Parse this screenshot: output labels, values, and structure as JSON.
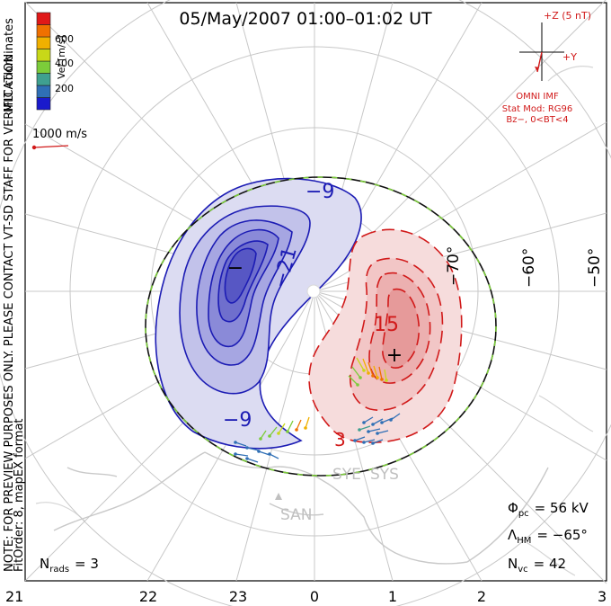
{
  "title": "05/May/2007 01:00–01:02 UT",
  "coords_label": "MLT coordinates",
  "preview_note": "NOTE: FOR PREVIEW PURPOSES ONLY. PLEASE CONTACT VT-SD STAFF FOR VERIFICATION.",
  "fit_note": "FitOrder: 8, mapEX format",
  "scale_bar": {
    "title": "Vel [m/s]",
    "ticks": [
      "200",
      "400",
      "600"
    ],
    "colors": [
      "#1a1acc",
      "#2f6fb5",
      "#3fa090",
      "#7ccc3a",
      "#c8d818",
      "#f0b000",
      "#ef7000",
      "#e01818"
    ]
  },
  "vector_ref": "1000 m/s",
  "imf": {
    "scale": "+Z (5 nT)",
    "y_label": "+Y",
    "title": "OMNI IMF",
    "model": "Stat Mod: RG96",
    "condition": "Bz−, 0<BT<4"
  },
  "stats": {
    "phi_label": "Φ",
    "phi_sub": "pc",
    "phi_value": "= 56 kV",
    "lambda_label": "Λ",
    "lambda_sub": "HM",
    "lambda_value": "= −65°",
    "nvc_label": "N",
    "nvc_sub": "vc",
    "nvc_value": "= 42",
    "nrads_label": "N",
    "nrads_sub": "rads",
    "nrads_value": "= 3"
  },
  "stations": [
    "SAN",
    "SYE",
    "SYS"
  ],
  "chart_data": {
    "type": "polar-contour",
    "mlt_ticks": [
      "21",
      "22",
      "23",
      "0",
      "1",
      "2",
      "3"
    ],
    "mlat_ticks": [
      "−70°",
      "−60°",
      "−50°"
    ],
    "contours": [
      {
        "cell": "dusk",
        "sign": "negative",
        "labels": [
          "−9",
          "−21",
          "−9"
        ],
        "extremum": "−"
      },
      {
        "cell": "dawn",
        "sign": "positive",
        "labels": [
          "15",
          "3"
        ],
        "extremum": "+"
      }
    ],
    "colors": {
      "negative": "#1c1cb4",
      "positive": "#d11a1a"
    }
  }
}
